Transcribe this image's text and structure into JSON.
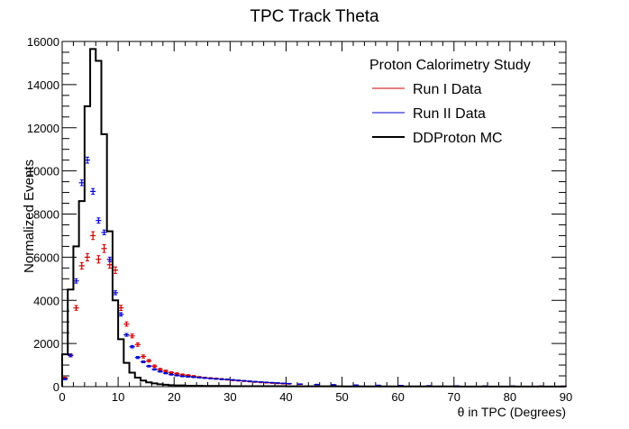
{
  "chart_data": {
    "type": "histogram",
    "title": "TPC Track Theta",
    "xlabel": "θ in TPC (Degrees)",
    "ylabel": "Normalized Events",
    "xlim": [
      0,
      90
    ],
    "ylim": [
      0,
      16000
    ],
    "x_ticks": [
      0,
      10,
      20,
      30,
      40,
      50,
      60,
      70,
      80,
      90
    ],
    "y_ticks": [
      0,
      2000,
      4000,
      6000,
      8000,
      10000,
      12000,
      14000,
      16000
    ],
    "grid": false,
    "legend": {
      "title": "Proton Calorimetry Study",
      "placement": "top-right",
      "entries": [
        "Run I Data",
        "Run II Data",
        "DDProton MC"
      ]
    },
    "bin_width": 1,
    "series": [
      {
        "name": "Run I Data",
        "style": "points-with-error-bars",
        "color": "#cc0000",
        "x": [
          0.5,
          1.5,
          2.5,
          3.5,
          4.5,
          5.5,
          6.5,
          7.5,
          8.5,
          9.5,
          10.5,
          11.5,
          12.5,
          13.5,
          14.5,
          15.5,
          16.5,
          17.5,
          18.5,
          19.5,
          20.5,
          21.5,
          22.5,
          23.5,
          24.5,
          25.5,
          26.5,
          27.5,
          28.5,
          29.5,
          30.5,
          31.5,
          32.5,
          33.5,
          34.5,
          35.5,
          36.5,
          37.5,
          38.5,
          39.5,
          40.5,
          42.5,
          45.5,
          48.5,
          52.5,
          56.5,
          60.5,
          65.5,
          70.5,
          75.5,
          80.5,
          85.5,
          89.5
        ],
        "values": [
          400,
          1450,
          3650,
          5600,
          6000,
          7000,
          5900,
          6400,
          5650,
          5400,
          3650,
          2900,
          2350,
          1950,
          1400,
          1200,
          950,
          800,
          720,
          650,
          600,
          550,
          520,
          480,
          440,
          410,
          390,
          370,
          350,
          330,
          300,
          280,
          260,
          240,
          220,
          200,
          185,
          170,
          155,
          140,
          130,
          110,
          95,
          80,
          65,
          55,
          45,
          38,
          32,
          28,
          25,
          22,
          20
        ],
        "errors": [
          40,
          70,
          110,
          150,
          170,
          180,
          170,
          180,
          160,
          150,
          120,
          100,
          90,
          80,
          70,
          60,
          55,
          50,
          45,
          42,
          40,
          38,
          36,
          34,
          32,
          30,
          29,
          28,
          27,
          26,
          25,
          24,
          23,
          22,
          21,
          20,
          19,
          18,
          17,
          16,
          15,
          14,
          13,
          12,
          11,
          10,
          9,
          8,
          7,
          7,
          6,
          6,
          6
        ]
      },
      {
        "name": "Run II Data",
        "style": "points-with-error-bars",
        "color": "#0000cc",
        "x": [
          0.5,
          1.5,
          2.5,
          3.5,
          4.5,
          5.5,
          6.5,
          7.5,
          8.5,
          9.5,
          10.5,
          11.5,
          12.5,
          13.5,
          14.5,
          15.5,
          16.5,
          17.5,
          18.5,
          19.5,
          20.5,
          21.5,
          22.5,
          23.5,
          24.5,
          25.5,
          26.5,
          27.5,
          28.5,
          29.5,
          30.5,
          31.5,
          32.5,
          33.5,
          34.5,
          35.5,
          36.5,
          37.5,
          38.5,
          39.5,
          40.5,
          42.5,
          45.5,
          48.5,
          52.5,
          56.5,
          60.5,
          65.5,
          70.5,
          75.5,
          80.5,
          85.5,
          89.5
        ],
        "values": [
          350,
          1450,
          4900,
          9450,
          10500,
          9050,
          7700,
          7150,
          5900,
          4350,
          3350,
          2400,
          1850,
          1350,
          1150,
          950,
          800,
          700,
          620,
          560,
          520,
          480,
          460,
          440,
          420,
          400,
          380,
          360,
          345,
          330,
          310,
          290,
          270,
          250,
          230,
          215,
          200,
          185,
          170,
          155,
          140,
          120,
          100,
          85,
          70,
          60,
          50,
          40,
          33,
          28,
          25,
          22,
          20
        ],
        "errors": [
          30,
          60,
          100,
          130,
          140,
          130,
          120,
          110,
          100,
          90,
          80,
          65,
          55,
          48,
          42,
          38,
          34,
          30,
          28,
          26,
          25,
          24,
          23,
          22,
          21,
          20,
          19,
          18,
          18,
          17,
          16,
          16,
          15,
          15,
          14,
          14,
          13,
          13,
          12,
          12,
          11,
          10,
          9,
          9,
          8,
          7,
          7,
          6,
          6,
          5,
          5,
          5,
          5
        ]
      },
      {
        "name": "DDProton MC",
        "style": "step",
        "color": "#000000",
        "bin_edges": [
          0,
          1,
          2,
          3,
          4,
          5,
          6,
          7,
          8,
          9,
          10,
          11,
          12,
          13,
          14,
          15,
          16,
          17,
          18,
          19,
          20,
          22,
          25,
          30,
          40,
          50,
          60,
          70,
          80,
          90
        ],
        "values": [
          1500,
          4500,
          6500,
          8600,
          13000,
          15650,
          15100,
          11700,
          7200,
          4000,
          2200,
          1100,
          650,
          420,
          280,
          200,
          150,
          110,
          90,
          70,
          55,
          40,
          30,
          20,
          15,
          10,
          8,
          5,
          3
        ]
      }
    ]
  }
}
